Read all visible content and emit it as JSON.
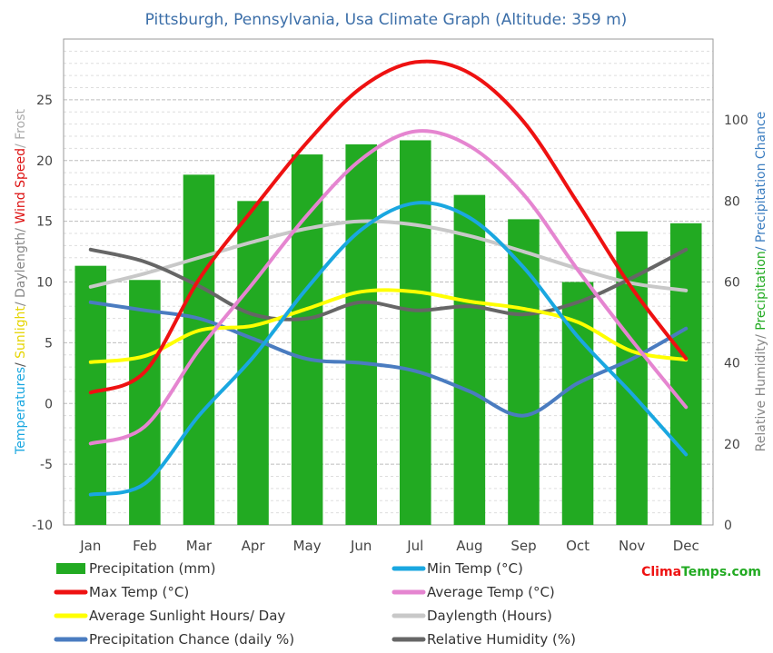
{
  "chart_data": {
    "type": "bar",
    "title": "Pittsburgh, Pennsylvania, Usa Climate Graph (Altitude: 359 m)",
    "categories": [
      "Jan",
      "Feb",
      "Mar",
      "Apr",
      "May",
      "Jun",
      "Jul",
      "Aug",
      "Sep",
      "Oct",
      "Nov",
      "Dec"
    ],
    "left_axis": {
      "label_parts": [
        {
          "text": "Temperatures",
          "color": "#1aa7e0"
        },
        {
          "text": "/ ",
          "color": "#555555"
        },
        {
          "text": "Sunlight",
          "color": "#e5d400"
        },
        {
          "text": "/ Daylength/ ",
          "color": "#888888"
        },
        {
          "text": "Wind Speed",
          "color": "#dd1111"
        },
        {
          "text": "/ Frost",
          "color": "#aaaaaa"
        }
      ],
      "ylim": [
        -10,
        30
      ],
      "ticks": [
        -10,
        -5,
        0,
        5,
        10,
        15,
        20,
        25
      ]
    },
    "right_axis": {
      "label_parts": [
        {
          "text": "Relative Humidity/ ",
          "color": "#888888"
        },
        {
          "text": "Precipitation",
          "color": "#22aa22"
        },
        {
          "text": "/ Precipitation Chance",
          "color": "#3b7dc0"
        }
      ],
      "ylim": [
        0,
        120
      ],
      "ticks": [
        0,
        20,
        40,
        60,
        80,
        100
      ]
    },
    "series": [
      {
        "name": "Precipitation (mm)",
        "kind": "bar",
        "axis": "right",
        "color": "#22aa22",
        "values": [
          64,
          60.5,
          86.5,
          80,
          91.5,
          94,
          95,
          81.5,
          75.5,
          60,
          72.5,
          74.5
        ]
      },
      {
        "name": "Min Temp (°C)",
        "kind": "line",
        "axis": "left",
        "color": "#1aa7e0",
        "values": [
          -7.5,
          -6.6,
          -1.0,
          3.8,
          9.5,
          14.3,
          16.5,
          15.3,
          11.2,
          5.5,
          0.8,
          -4.2
        ]
      },
      {
        "name": "Max Temp (°C)",
        "kind": "line",
        "axis": "left",
        "color": "#ee1111",
        "values": [
          0.9,
          2.6,
          10.2,
          16.0,
          21.5,
          26.0,
          28.1,
          27.2,
          23.2,
          16.5,
          9.5,
          3.7
        ]
      },
      {
        "name": "Average Temp (°C)",
        "kind": "line",
        "axis": "left",
        "color": "#e585d0",
        "values": [
          -3.3,
          -1.9,
          4.4,
          9.9,
          15.5,
          20.1,
          22.4,
          21.2,
          17.2,
          11.0,
          5.2,
          -0.3
        ]
      },
      {
        "name": "Average Sunlight Hours/ Day",
        "kind": "line",
        "axis": "left",
        "color": "#ffff00",
        "values": [
          3.4,
          3.9,
          6.0,
          6.4,
          7.8,
          9.2,
          9.2,
          8.4,
          7.8,
          6.7,
          4.3,
          3.6
        ]
      },
      {
        "name": "Daylength (Hours)",
        "kind": "line",
        "axis": "left",
        "color": "#c8c8c8",
        "values": [
          9.6,
          10.7,
          12.0,
          13.3,
          14.4,
          15.0,
          14.7,
          13.8,
          12.5,
          11.1,
          9.9,
          9.3
        ]
      },
      {
        "name": "Precipitation Chance (daily %)",
        "kind": "line",
        "axis": "right",
        "color": "#4a7cc0",
        "values": [
          55,
          53,
          51,
          46,
          41,
          40,
          38,
          33,
          27,
          35,
          41,
          48.5
        ]
      },
      {
        "name": "Relative Humidity (%)",
        "kind": "line",
        "axis": "right",
        "color": "#666666",
        "values": [
          68,
          65,
          59,
          52,
          51,
          55,
          53,
          54,
          52,
          55,
          61,
          68
        ]
      }
    ],
    "legend": {
      "placement": "bottom",
      "items": [
        {
          "label": "Precipitation (mm)",
          "color": "#22aa22",
          "style": "bar"
        },
        {
          "label": "Min Temp (°C)",
          "color": "#1aa7e0",
          "style": "line"
        },
        {
          "label": "Max Temp (°C)",
          "color": "#ee1111",
          "style": "line"
        },
        {
          "label": "Average Temp (°C)",
          "color": "#e585d0",
          "style": "line"
        },
        {
          "label": "Average Sunlight Hours/ Day",
          "color": "#ffff00",
          "style": "line"
        },
        {
          "label": "Daylength (Hours)",
          "color": "#c8c8c8",
          "style": "line"
        },
        {
          "label": "Precipitation Chance (daily %)",
          "color": "#4a7cc0",
          "style": "line"
        },
        {
          "label": "Relative Humidity (%)",
          "color": "#666666",
          "style": "line"
        }
      ]
    },
    "grid": true
  },
  "brand": {
    "part1": "Clima",
    "part2": "Temps",
    "part3": ".com",
    "color1": "#ee1111",
    "color2": "#22aa22"
  }
}
